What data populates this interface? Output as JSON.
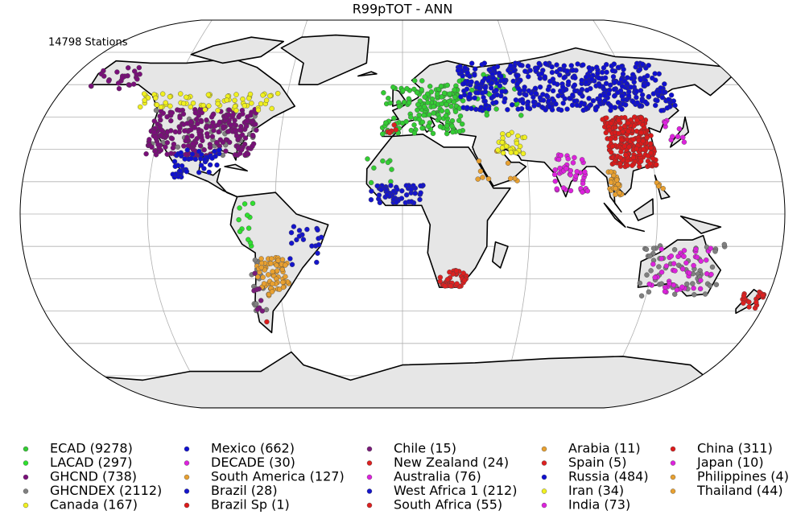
{
  "title": "R99pTOT - ANN",
  "annotation": "14798 Stations",
  "legend": [
    {
      "label": "ECAD (9278)",
      "color": "#33cc33"
    },
    {
      "label": "LACAD (297)",
      "color": "#2ee02e"
    },
    {
      "label": "GHCND (738)",
      "color": "#7a0f7a"
    },
    {
      "label": "GHCNDEX (2112)",
      "color": "#808080"
    },
    {
      "label": "Canada (167)",
      "color": "#f0f020"
    },
    {
      "label": "Mexico (662)",
      "color": "#1010d0"
    },
    {
      "label": "DECADE (30)",
      "color": "#dd22dd"
    },
    {
      "label": "South America (127)",
      "color": "#e8a030"
    },
    {
      "label": "Brazil (28)",
      "color": "#1515cc"
    },
    {
      "label": "Brazil Sp (1)",
      "color": "#dd1a1a"
    },
    {
      "label": "Chile (15)",
      "color": "#7a1a7a"
    },
    {
      "label": "New Zealand (24)",
      "color": "#dd2020"
    },
    {
      "label": "Australia (76)",
      "color": "#dd22dd"
    },
    {
      "label": "West Africa 1 (212)",
      "color": "#1515cc"
    },
    {
      "label": "South Africa (55)",
      "color": "#dd2020"
    },
    {
      "label": "Arabia (11)",
      "color": "#e8a030"
    },
    {
      "label": "Spain (5)",
      "color": "#dd2020"
    },
    {
      "label": "Russia (484)",
      "color": "#1010d0"
    },
    {
      "label": "Iran (34)",
      "color": "#f0f020"
    },
    {
      "label": "India (73)",
      "color": "#dd22dd"
    },
    {
      "label": "China (311)",
      "color": "#dd1a1a"
    },
    {
      "label": "Japan (10)",
      "color": "#dd22dd"
    },
    {
      "label": "Philippines (4)",
      "color": "#e8a030"
    },
    {
      "label": "Thailand (44)",
      "color": "#e8a030"
    }
  ]
}
